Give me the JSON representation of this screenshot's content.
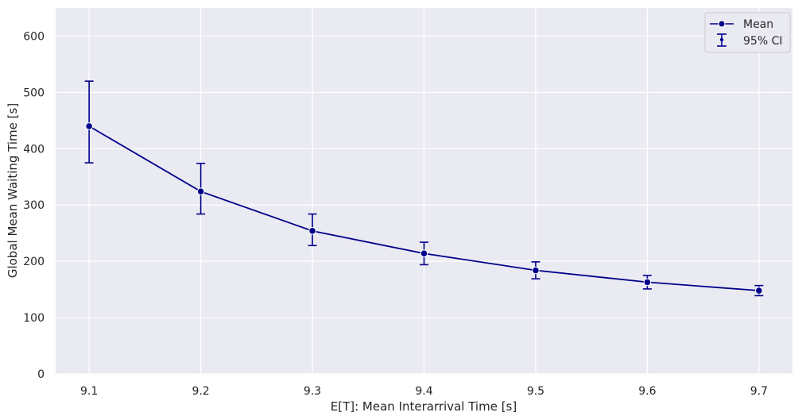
{
  "chart_data": {
    "type": "line",
    "title": "",
    "xlabel": "E[T]: Mean Interarrival Time [s]",
    "ylabel": "Global Mean Waiting Time [s]",
    "x": [
      9.1,
      9.2,
      9.3,
      9.4,
      9.5,
      9.6,
      9.7
    ],
    "xlim": [
      9.07,
      9.73
    ],
    "ylim": [
      0,
      650
    ],
    "x_ticks": [
      "9.1",
      "9.2",
      "9.3",
      "9.4",
      "9.5",
      "9.6",
      "9.7"
    ],
    "y_ticks": [
      "0",
      "100",
      "200",
      "300",
      "400",
      "500",
      "600"
    ],
    "x_tick_values": [
      9.1,
      9.2,
      9.3,
      9.4,
      9.5,
      9.6,
      9.7
    ],
    "y_tick_values": [
      0,
      100,
      200,
      300,
      400,
      500,
      600
    ],
    "grid": true,
    "legend_position": "top-right",
    "series": [
      {
        "name": "Mean",
        "values": [
          440,
          324,
          254,
          214,
          184,
          163,
          148
        ],
        "color": "#00008b"
      }
    ],
    "error_bars": {
      "name": "95% CI",
      "lower": [
        375,
        284,
        228,
        194,
        169,
        151,
        139
      ],
      "upper": [
        520,
        374,
        284,
        234,
        199,
        175,
        157
      ],
      "color": "#00008b"
    },
    "legend": [
      {
        "label": "Mean",
        "marker": "line-dot"
      },
      {
        "label": "95% CI",
        "marker": "errorbar"
      }
    ],
    "colors": {
      "plot_background": "#eaeaf2",
      "grid": "#ffffff",
      "series": "#00008b"
    }
  }
}
